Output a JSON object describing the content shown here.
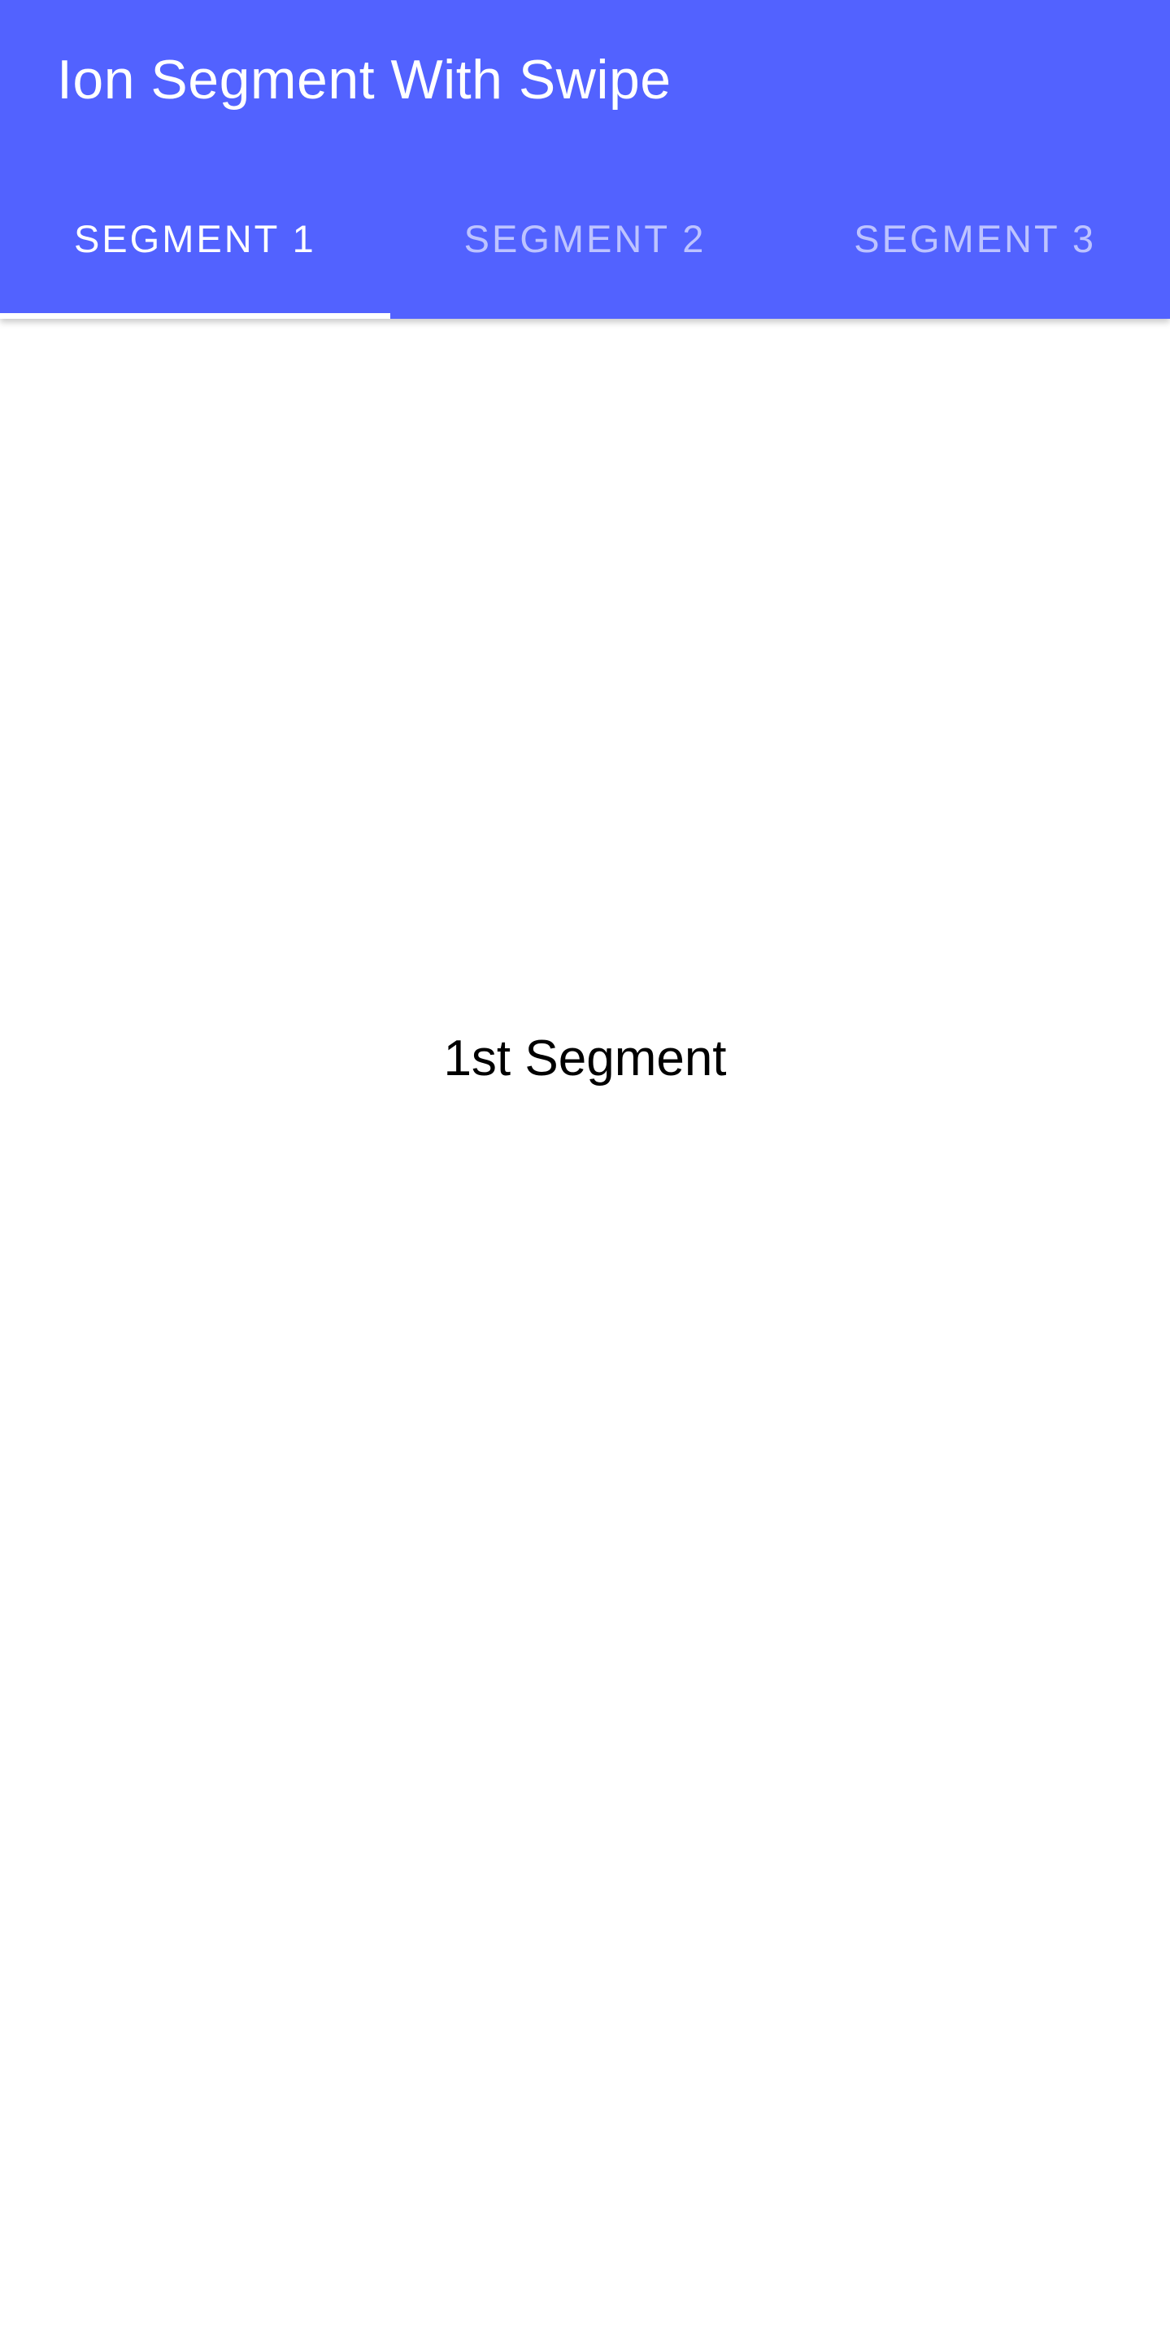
{
  "toolbar": {
    "title": "Ion Segment With Swipe"
  },
  "segments": [
    {
      "label": "SEGMENT 1",
      "selected": true
    },
    {
      "label": "SEGMENT 2",
      "selected": false
    },
    {
      "label": "SEGMENT 3",
      "selected": false
    }
  ],
  "content": {
    "slide_text": "1st Segment"
  },
  "colors": {
    "primary": "#5262ff",
    "on_primary": "#ffffff",
    "background": "#ffffff",
    "text": "#000000"
  }
}
